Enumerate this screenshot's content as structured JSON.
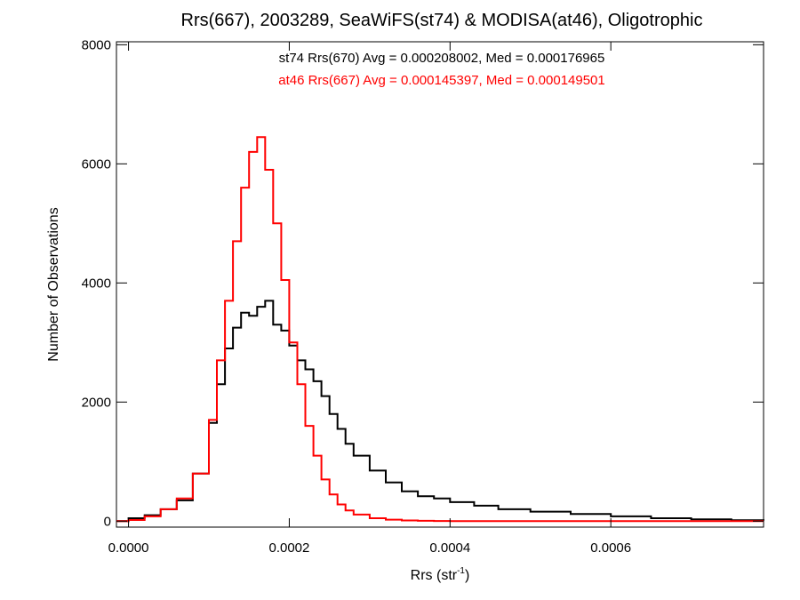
{
  "chart_data": {
    "type": "line",
    "step": true,
    "title": "Rrs(667), 2003289, SeaWiFS(st74) & MODISA(at46), Oligotrophic",
    "xlabel": "Rrs (str",
    "xlabel_sup": "-1",
    "xlabel_end": ")",
    "ylabel": "Number of Observations",
    "xlim": [
      -1.5e-05,
      0.00079
    ],
    "ylim": [
      -100,
      8050
    ],
    "xticks": [
      0.0,
      0.0002,
      0.0004,
      0.0006
    ],
    "xtick_labels": [
      "0.0000",
      "0.0002",
      "0.0004",
      "0.0006"
    ],
    "yticks": [
      0,
      2000,
      4000,
      6000,
      8000
    ],
    "ytick_labels": [
      "0",
      "2000",
      "4000",
      "6000",
      "8000"
    ],
    "grid": false,
    "annotations": [
      {
        "text": "st74 Rrs(670) Avg = 0.000208002, Med = 0.000176965",
        "color": "#000000"
      },
      {
        "text": "at46 Rrs(667) Avg = 0.000145397, Med = 0.000149501",
        "color": "#ff0000"
      }
    ],
    "series": [
      {
        "name": "st74 Rrs(670)",
        "color": "#000000",
        "x": [
          -1.5e-05,
          0.0,
          2e-05,
          4e-05,
          6e-05,
          8e-05,
          0.0001,
          0.00011,
          0.00012,
          0.00013,
          0.00014,
          0.00015,
          0.00016,
          0.00017,
          0.00018,
          0.00019,
          0.0002,
          0.00021,
          0.00022,
          0.00023,
          0.00024,
          0.00025,
          0.00026,
          0.00027,
          0.00028,
          0.0003,
          0.00032,
          0.00034,
          0.00036,
          0.00038,
          0.0004,
          0.00043,
          0.00046,
          0.0005,
          0.00055,
          0.0006,
          0.00065,
          0.0007,
          0.00075,
          0.00079
        ],
        "y": [
          0,
          50,
          100,
          200,
          350,
          800,
          1650,
          2300,
          2900,
          3250,
          3500,
          3450,
          3600,
          3700,
          3300,
          3200,
          2950,
          2700,
          2550,
          2350,
          2100,
          1800,
          1550,
          1300,
          1100,
          850,
          650,
          500,
          420,
          380,
          320,
          260,
          200,
          160,
          120,
          80,
          50,
          30,
          15,
          10
        ]
      },
      {
        "name": "at46 Rrs(667)",
        "color": "#ff0000",
        "x": [
          -1.5e-05,
          0.0,
          2e-05,
          4e-05,
          6e-05,
          8e-05,
          0.0001,
          0.00011,
          0.00012,
          0.00013,
          0.00014,
          0.00015,
          0.00016,
          0.00017,
          0.00018,
          0.00019,
          0.0002,
          0.00021,
          0.00022,
          0.00023,
          0.00024,
          0.00025,
          0.00026,
          0.00027,
          0.00028,
          0.0003,
          0.00032,
          0.00034,
          0.00036,
          0.00038,
          0.0004,
          0.00043,
          0.00046,
          0.0005,
          0.00055,
          0.0006,
          0.00065,
          0.0007,
          0.00075,
          0.00079
        ],
        "y": [
          0,
          20,
          80,
          200,
          380,
          800,
          1700,
          2700,
          3700,
          4700,
          5600,
          6200,
          6450,
          5900,
          5000,
          4050,
          3000,
          2300,
          1600,
          1100,
          700,
          450,
          280,
          180,
          110,
          50,
          25,
          12,
          6,
          3,
          2,
          1,
          0,
          0,
          0,
          0,
          0,
          0,
          0,
          0
        ]
      }
    ]
  }
}
